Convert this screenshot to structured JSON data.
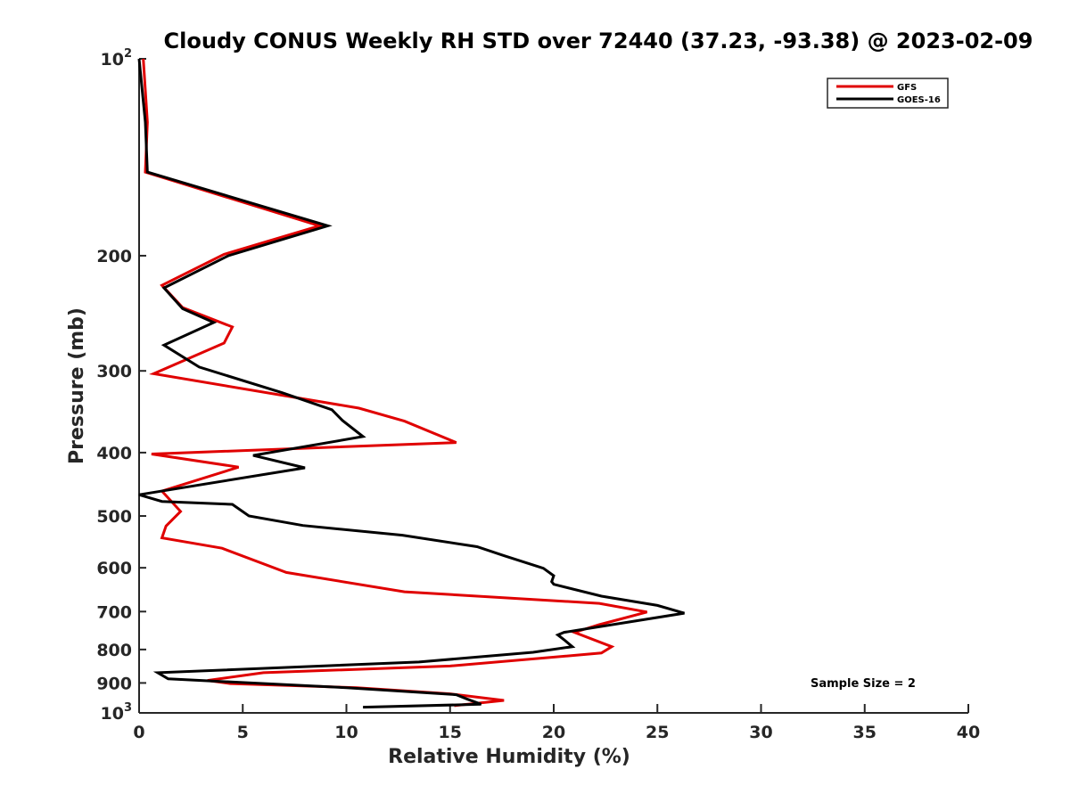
{
  "chart_data": {
    "type": "line",
    "title": "Cloudy CONUS Weekly RH STD over 72440 (37.23, -93.38) @ 2023-02-09",
    "xlabel": "Relative Humidity (%)",
    "ylabel": "Pressure (mb)",
    "xlim": [
      0,
      40
    ],
    "ylim": [
      100,
      1000
    ],
    "yscale": "log",
    "yreversed": true,
    "grid": false,
    "legend_position": "top-right",
    "x_ticks": [
      0,
      5,
      10,
      15,
      20,
      25,
      30,
      35,
      40
    ],
    "x_tick_labels": [
      "0",
      "5",
      "10",
      "15",
      "20",
      "25",
      "30",
      "35",
      "40"
    ],
    "y_ticks": [
      {
        "value": 100,
        "label": "10",
        "sup": "2"
      },
      {
        "value": 200,
        "label": "200",
        "sup": ""
      },
      {
        "value": 300,
        "label": "300",
        "sup": ""
      },
      {
        "value": 400,
        "label": "400",
        "sup": ""
      },
      {
        "value": 500,
        "label": "500",
        "sup": ""
      },
      {
        "value": 600,
        "label": "600",
        "sup": ""
      },
      {
        "value": 700,
        "label": "700",
        "sup": ""
      },
      {
        "value": 800,
        "label": "800",
        "sup": ""
      },
      {
        "value": 900,
        "label": "900",
        "sup": ""
      },
      {
        "value": 1000,
        "label": "10",
        "sup": "3"
      }
    ],
    "annotation": "Sample Size = 2",
    "series": [
      {
        "name": "GFS",
        "color": "#e00000",
        "points": [
          [
            0.2,
            100
          ],
          [
            0.4,
            125
          ],
          [
            0.3,
            149
          ],
          [
            8.7,
            180
          ],
          [
            4.1,
            199
          ],
          [
            1.1,
            222
          ],
          [
            2.1,
            240
          ],
          [
            4.5,
            257
          ],
          [
            4.1,
            272
          ],
          [
            0.7,
            303
          ],
          [
            10.6,
            342
          ],
          [
            12.8,
            358
          ],
          [
            15.3,
            386
          ],
          [
            0.6,
            402
          ],
          [
            4.8,
            421
          ],
          [
            1.1,
            458
          ],
          [
            2.0,
            492
          ],
          [
            1.3,
            518
          ],
          [
            1.1,
            540
          ],
          [
            4.0,
            560
          ],
          [
            7.1,
            610
          ],
          [
            12.8,
            653
          ],
          [
            22.2,
            680
          ],
          [
            24.5,
            701
          ],
          [
            22.2,
            733
          ],
          [
            21.0,
            753
          ],
          [
            22.8,
            792
          ],
          [
            22.3,
            810
          ],
          [
            15.0,
            848
          ],
          [
            6.0,
            868
          ],
          [
            3.3,
            892
          ],
          [
            4.4,
            902
          ],
          [
            10.5,
            915
          ],
          [
            15.0,
            935
          ],
          [
            17.6,
            957
          ],
          [
            15.2,
            975
          ]
        ]
      },
      {
        "name": "GOES-16",
        "color": "#000000",
        "points": [
          [
            0.0,
            100
          ],
          [
            0.3,
            125
          ],
          [
            0.4,
            149
          ],
          [
            9.1,
            180
          ],
          [
            4.3,
            200
          ],
          [
            1.2,
            224
          ],
          [
            2.1,
            241
          ],
          [
            3.6,
            253
          ],
          [
            1.2,
            274
          ],
          [
            2.9,
            296
          ],
          [
            6.9,
            324
          ],
          [
            9.3,
            344
          ],
          [
            9.8,
            357
          ],
          [
            10.8,
            378
          ],
          [
            5.5,
            404
          ],
          [
            8.0,
            422
          ],
          [
            0.0,
            464
          ],
          [
            1.1,
            475
          ],
          [
            4.5,
            480
          ],
          [
            5.3,
            500
          ],
          [
            7.9,
            517
          ],
          [
            12.7,
            535
          ],
          [
            16.3,
            557
          ],
          [
            17.6,
            575
          ],
          [
            19.5,
            601
          ],
          [
            20.0,
            617
          ],
          [
            19.9,
            630
          ],
          [
            20.0,
            636
          ],
          [
            22.3,
            663
          ],
          [
            25.0,
            685
          ],
          [
            26.3,
            704
          ],
          [
            20.5,
            753
          ],
          [
            20.2,
            760
          ],
          [
            20.5,
            773
          ],
          [
            20.9,
            792
          ],
          [
            19.0,
            808
          ],
          [
            13.5,
            836
          ],
          [
            0.9,
            868
          ],
          [
            1.4,
            887
          ],
          [
            10.0,
            915
          ],
          [
            15.3,
            938
          ],
          [
            15.8,
            952
          ],
          [
            16.5,
            970
          ],
          [
            10.8,
            980
          ]
        ]
      }
    ]
  }
}
